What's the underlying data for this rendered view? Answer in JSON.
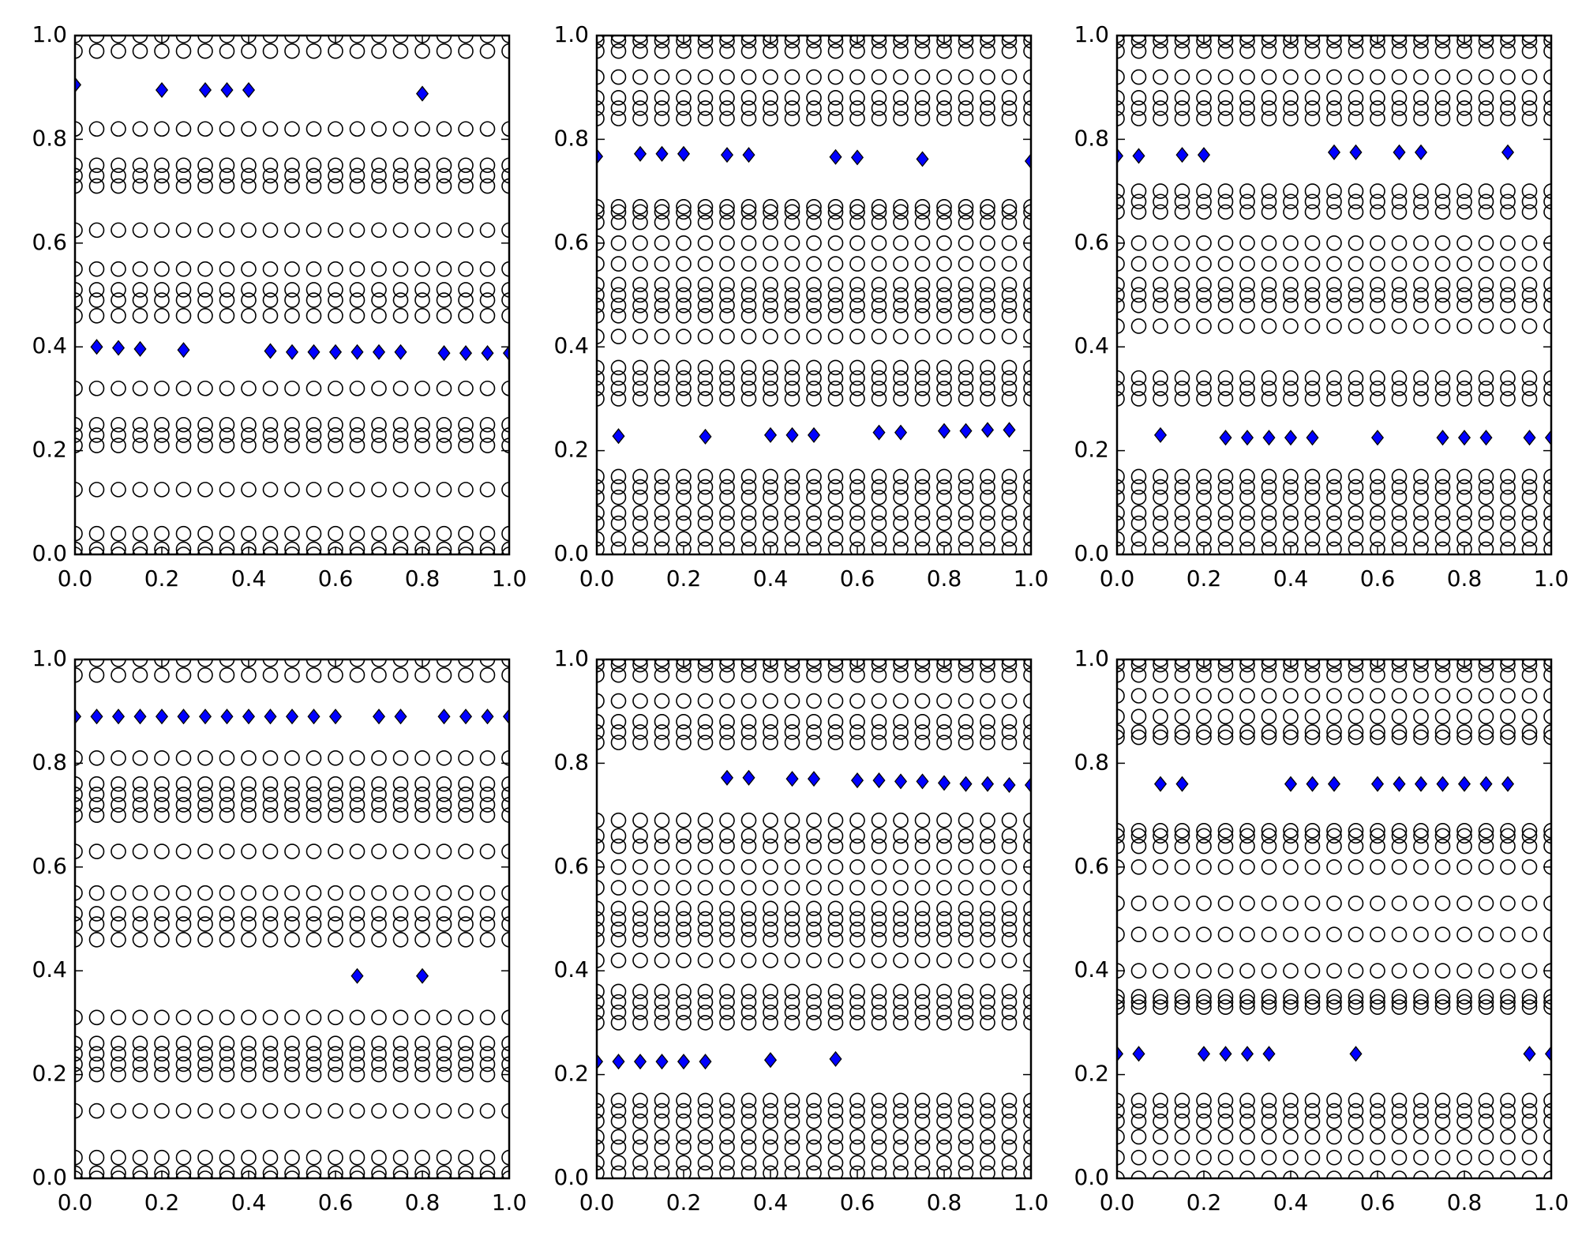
{
  "chart_data": [
    {
      "type": "scatter",
      "xlim": [
        0,
        1
      ],
      "ylim": [
        0,
        1
      ],
      "xticks": [
        {
          "value": 0,
          "label": "0.0"
        },
        0.2,
        0.4,
        0.6,
        0.8,
        {
          "value": 1,
          "label": "1.0"
        }
      ],
      "yticks": [
        {
          "value": 0,
          "label": "0.0"
        },
        0.2,
        0.4,
        0.6,
        0.8,
        {
          "value": 1,
          "label": "1.0"
        }
      ],
      "x": [
        0,
        0.05,
        0.1,
        0.15,
        0.2,
        0.25,
        0.3,
        0.35,
        0.4,
        0.45,
        0.5,
        0.55,
        0.6,
        0.65,
        0.7,
        0.75,
        0.8,
        0.85,
        0.9,
        0.95,
        1
      ],
      "circle_color": "#000000",
      "circle_rows": [
        1,
        0.97,
        0.82,
        0.75,
        0.73,
        0.71,
        0.625,
        0.55,
        0.51,
        0.49,
        0.46,
        0.32,
        0.25,
        0.23,
        0.21,
        0.125,
        0.04,
        0.01,
        0
      ],
      "series": [
        {
          "color": "#0000ff",
          "values": [
            0.905,
            null,
            null,
            null,
            0.895,
            null,
            0.895,
            0.895,
            0.895,
            null,
            null,
            null,
            null,
            null,
            null,
            null,
            0.888,
            null,
            null,
            null,
            null
          ]
        },
        {
          "color": "#0000ff",
          "values": [
            null,
            0.4,
            0.398,
            0.396,
            null,
            0.394,
            null,
            null,
            null,
            0.392,
            0.39,
            0.39,
            0.39,
            0.39,
            0.39,
            0.39,
            null,
            0.388,
            0.388,
            0.388,
            0.388
          ]
        }
      ]
    },
    {
      "type": "scatter",
      "xlim": [
        0,
        1
      ],
      "ylim": [
        0,
        1
      ],
      "xticks": [
        {
          "value": 0,
          "label": "0.0"
        },
        0.2,
        0.4,
        0.6,
        0.8,
        {
          "value": 1,
          "label": "1.0"
        }
      ],
      "yticks": [
        {
          "value": 0,
          "label": "0.0"
        },
        0.2,
        0.4,
        0.6,
        0.8,
        {
          "value": 1,
          "label": "1.0"
        }
      ],
      "x": [
        0,
        0.05,
        0.1,
        0.15,
        0.2,
        0.25,
        0.3,
        0.35,
        0.4,
        0.45,
        0.5,
        0.55,
        0.6,
        0.65,
        0.7,
        0.75,
        0.8,
        0.85,
        0.9,
        0.95,
        1
      ],
      "circle_color": "#000000",
      "circle_rows": [
        1,
        0.99,
        0.97,
        0.92,
        0.88,
        0.86,
        0.84,
        0.67,
        0.66,
        0.64,
        0.6,
        0.56,
        0.52,
        0.5,
        0.48,
        0.46,
        0.42,
        0.36,
        0.34,
        0.32,
        0.3,
        0.15,
        0.13,
        0.11,
        0.08,
        0.06,
        0.03,
        0.01
      ],
      "series": [
        {
          "color": "#0000ff",
          "values": [
            0.767,
            null,
            0.772,
            0.772,
            0.772,
            null,
            0.77,
            0.77,
            null,
            null,
            null,
            0.766,
            0.765,
            null,
            null,
            0.762,
            null,
            null,
            null,
            null,
            0.758
          ]
        },
        {
          "color": "#0000ff",
          "values": [
            null,
            0.228,
            null,
            null,
            null,
            0.227,
            null,
            null,
            0.23,
            0.23,
            0.23,
            null,
            null,
            0.235,
            0.235,
            null,
            0.238,
            0.238,
            0.24,
            0.24,
            null
          ]
        }
      ]
    },
    {
      "type": "scatter",
      "xlim": [
        0,
        1
      ],
      "ylim": [
        0,
        1
      ],
      "xticks": [
        {
          "value": 0,
          "label": "0.0"
        },
        0.2,
        0.4,
        0.6,
        0.8,
        {
          "value": 1,
          "label": "1.0"
        }
      ],
      "yticks": [
        {
          "value": 0,
          "label": "0.0"
        },
        0.2,
        0.4,
        0.6,
        0.8,
        {
          "value": 1,
          "label": "1.0"
        }
      ],
      "x": [
        0,
        0.05,
        0.1,
        0.15,
        0.2,
        0.25,
        0.3,
        0.35,
        0.4,
        0.45,
        0.5,
        0.55,
        0.6,
        0.65,
        0.7,
        0.75,
        0.8,
        0.85,
        0.9,
        0.95,
        1
      ],
      "circle_color": "#000000",
      "circle_rows": [
        1,
        0.99,
        0.97,
        0.92,
        0.88,
        0.86,
        0.84,
        0.7,
        0.68,
        0.66,
        0.6,
        0.56,
        0.52,
        0.5,
        0.48,
        0.44,
        0.34,
        0.32,
        0.3,
        0.15,
        0.13,
        0.11,
        0.08,
        0.06,
        0.03,
        0.01
      ],
      "series": [
        {
          "color": "#0000ff",
          "values": [
            0.768,
            0.768,
            null,
            0.77,
            0.77,
            null,
            null,
            null,
            null,
            null,
            0.775,
            0.775,
            null,
            0.775,
            0.775,
            null,
            null,
            null,
            0.775,
            null,
            null
          ]
        },
        {
          "color": "#0000ff",
          "values": [
            null,
            null,
            0.23,
            null,
            null,
            0.225,
            0.225,
            0.225,
            0.225,
            0.225,
            null,
            null,
            0.225,
            null,
            null,
            0.225,
            0.225,
            0.225,
            null,
            0.225,
            0.225
          ]
        }
      ]
    },
    {
      "type": "scatter",
      "xlim": [
        0,
        1
      ],
      "ylim": [
        0,
        1
      ],
      "xticks": [
        {
          "value": 0,
          "label": "0.0"
        },
        0.2,
        0.4,
        0.6,
        0.8,
        {
          "value": 1,
          "label": "1.0"
        }
      ],
      "yticks": [
        {
          "value": 0,
          "label": "0.0"
        },
        0.2,
        0.4,
        0.6,
        0.8,
        {
          "value": 1,
          "label": "1.0"
        }
      ],
      "x": [
        0,
        0.05,
        0.1,
        0.15,
        0.2,
        0.25,
        0.3,
        0.35,
        0.4,
        0.45,
        0.5,
        0.55,
        0.6,
        0.65,
        0.7,
        0.75,
        0.8,
        0.85,
        0.9,
        0.95,
        1
      ],
      "circle_color": "#000000",
      "circle_rows": [
        1,
        0.97,
        0.81,
        0.76,
        0.74,
        0.72,
        0.7,
        0.63,
        0.55,
        0.51,
        0.49,
        0.46,
        0.31,
        0.26,
        0.24,
        0.22,
        0.2,
        0.13,
        0.04,
        0.01,
        0
      ],
      "series": [
        {
          "color": "#0000ff",
          "values": [
            0.89,
            0.89,
            0.89,
            0.89,
            0.89,
            0.89,
            0.89,
            0.89,
            0.89,
            0.89,
            0.89,
            0.89,
            0.89,
            null,
            0.89,
            0.89,
            null,
            0.89,
            0.89,
            0.89,
            0.89
          ]
        },
        {
          "color": "#0000ff",
          "values": [
            null,
            null,
            null,
            null,
            null,
            null,
            null,
            null,
            null,
            null,
            null,
            null,
            null,
            0.39,
            null,
            null,
            0.39,
            null,
            null,
            null,
            null
          ]
        }
      ]
    },
    {
      "type": "scatter",
      "xlim": [
        0,
        1
      ],
      "ylim": [
        0,
        1
      ],
      "xticks": [
        {
          "value": 0,
          "label": "0.0"
        },
        0.2,
        0.4,
        0.6,
        0.8,
        {
          "value": 1,
          "label": "1.0"
        }
      ],
      "yticks": [
        {
          "value": 0,
          "label": "0.0"
        },
        0.2,
        0.4,
        0.6,
        0.8,
        {
          "value": 1,
          "label": "1.0"
        }
      ],
      "x": [
        0,
        0.05,
        0.1,
        0.15,
        0.2,
        0.25,
        0.3,
        0.35,
        0.4,
        0.45,
        0.5,
        0.55,
        0.6,
        0.65,
        0.7,
        0.75,
        0.8,
        0.85,
        0.9,
        0.95,
        1
      ],
      "circle_color": "#000000",
      "circle_rows": [
        1,
        0.99,
        0.97,
        0.92,
        0.88,
        0.86,
        0.84,
        0.69,
        0.66,
        0.64,
        0.6,
        0.56,
        0.52,
        0.5,
        0.48,
        0.46,
        0.42,
        0.36,
        0.34,
        0.32,
        0.3,
        0.15,
        0.13,
        0.11,
        0.08,
        0.06,
        0.03,
        0.01
      ],
      "series": [
        {
          "color": "#0000ff",
          "values": [
            null,
            null,
            null,
            null,
            null,
            null,
            0.772,
            0.772,
            null,
            0.77,
            0.77,
            null,
            0.767,
            0.767,
            0.765,
            0.765,
            0.762,
            0.76,
            0.76,
            0.758,
            0.758
          ]
        },
        {
          "color": "#0000ff",
          "values": [
            0.225,
            0.225,
            0.225,
            0.225,
            0.225,
            0.225,
            null,
            null,
            0.228,
            null,
            null,
            0.23,
            null,
            null,
            null,
            null,
            null,
            null,
            null,
            null,
            null
          ]
        }
      ]
    },
    {
      "type": "scatter",
      "xlim": [
        0,
        1
      ],
      "ylim": [
        0,
        1
      ],
      "xticks": [
        {
          "value": 0,
          "label": "0.0"
        },
        0.2,
        0.4,
        0.6,
        0.8,
        {
          "value": 1,
          "label": "1.0"
        }
      ],
      "yticks": [
        {
          "value": 0,
          "label": "0.0"
        },
        0.2,
        0.4,
        0.6,
        0.8,
        {
          "value": 1,
          "label": "1.0"
        }
      ],
      "x": [
        0,
        0.05,
        0.1,
        0.15,
        0.2,
        0.25,
        0.3,
        0.35,
        0.4,
        0.45,
        0.5,
        0.55,
        0.6,
        0.65,
        0.7,
        0.75,
        0.8,
        0.85,
        0.9,
        0.95,
        1
      ],
      "circle_color": "#000000",
      "circle_rows": [
        1,
        0.99,
        0.97,
        0.93,
        0.89,
        0.86,
        0.85,
        0.67,
        0.66,
        0.64,
        0.6,
        0.53,
        0.47,
        0.4,
        0.35,
        0.34,
        0.33,
        0.15,
        0.13,
        0.11,
        0.08,
        0.04,
        0
      ],
      "series": [
        {
          "color": "#0000ff",
          "values": [
            null,
            null,
            0.76,
            0.76,
            null,
            null,
            null,
            null,
            0.76,
            0.76,
            0.76,
            null,
            0.76,
            0.76,
            0.76,
            0.76,
            0.76,
            0.76,
            0.76,
            null,
            null
          ]
        },
        {
          "color": "#0000ff",
          "values": [
            0.24,
            0.24,
            null,
            null,
            0.24,
            0.24,
            0.24,
            0.24,
            null,
            null,
            null,
            0.24,
            null,
            null,
            null,
            null,
            null,
            null,
            null,
            0.24,
            0.24
          ]
        }
      ]
    }
  ]
}
